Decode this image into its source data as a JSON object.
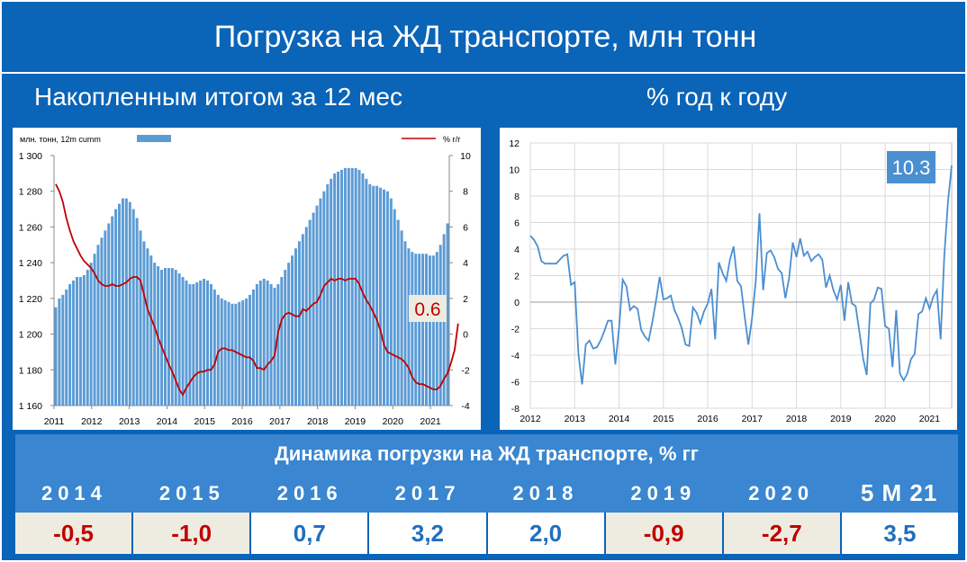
{
  "title": "Погрузка на ЖД транспорте, млн тонн",
  "left_subtitle": "Накопленным итогом за 12 мес",
  "right_subtitle": "% год к году",
  "chart_data": [
    {
      "type": "bar",
      "legend_bar": "млн. тонн, 12m cumm",
      "legend_line": "% г/г",
      "legend_position": "top",
      "x_ticks": [
        "2011",
        "2012",
        "2013",
        "2014",
        "2015",
        "2016",
        "2017",
        "2018",
        "2019",
        "2020",
        "2021"
      ],
      "y_left_ticks": [
        "1 300",
        "1 280",
        "1 260",
        "1 240",
        "1 220",
        "1 200",
        "1 180",
        "1 160"
      ],
      "y_right_ticks": [
        "10",
        "8",
        "6",
        "4",
        "2",
        "0",
        "-2",
        "-4"
      ],
      "ylim_left": [
        1160,
        1300
      ],
      "ylim_right": [
        -4,
        10
      ],
      "x_start": 2011.0,
      "x_step_months": 1,
      "series": [
        {
          "name": "млн. тонн, 12m cumm",
          "axis": "left",
          "values": [
            1215,
            1220,
            1222,
            1225,
            1228,
            1230,
            1232,
            1232,
            1233,
            1236,
            1240,
            1245,
            1250,
            1254,
            1258,
            1262,
            1266,
            1270,
            1273,
            1276,
            1276,
            1274,
            1270,
            1265,
            1258,
            1252,
            1248,
            1244,
            1240,
            1238,
            1236,
            1237,
            1237,
            1237,
            1236,
            1234,
            1232,
            1230,
            1228,
            1228,
            1229,
            1230,
            1231,
            1230,
            1228,
            1225,
            1222,
            1220,
            1219,
            1218,
            1217,
            1217,
            1218,
            1219,
            1220,
            1222,
            1225,
            1228,
            1230,
            1231,
            1230,
            1228,
            1226,
            1228,
            1232,
            1236,
            1240,
            1244,
            1248,
            1252,
            1256,
            1260,
            1264,
            1268,
            1272,
            1276,
            1280,
            1284,
            1287,
            1290,
            1291,
            1292,
            1293,
            1293,
            1293,
            1293,
            1292,
            1290,
            1287,
            1284,
            1283,
            1283,
            1282,
            1281,
            1280,
            1276,
            1270,
            1264,
            1258,
            1252,
            1248,
            1246,
            1245,
            1245,
            1245,
            1245,
            1244,
            1244,
            1246,
            1250,
            1256,
            1262
          ]
        },
        {
          "name": "% г/г",
          "axis": "right",
          "values": [
            8.4,
            8.0,
            7.4,
            6.5,
            5.8,
            5.2,
            4.8,
            4.4,
            4.1,
            3.9,
            3.7,
            3.4,
            3.0,
            2.8,
            2.7,
            2.7,
            2.8,
            2.7,
            2.7,
            2.8,
            2.9,
            3.1,
            3.2,
            3.2,
            3.0,
            2.2,
            1.4,
            0.9,
            0.4,
            -0.2,
            -0.7,
            -1.2,
            -1.7,
            -2.1,
            -2.6,
            -3.1,
            -3.4,
            -3.0,
            -2.7,
            -2.4,
            -2.2,
            -2.1,
            -2.1,
            -2.0,
            -2.0,
            -1.7,
            -1.0,
            -0.8,
            -0.8,
            -0.9,
            -0.9,
            -1.0,
            -1.1,
            -1.2,
            -1.3,
            -1.3,
            -1.5,
            -1.9,
            -1.9,
            -2.0,
            -1.7,
            -1.5,
            -1.2,
            0.1,
            0.8,
            1.1,
            1.2,
            1.1,
            1.0,
            1.0,
            1.4,
            1.3,
            1.5,
            1.7,
            1.8,
            2.2,
            2.7,
            2.9,
            3.1,
            3.0,
            3.1,
            3.1,
            3.0,
            3.1,
            3.1,
            3.1,
            2.8,
            2.3,
            1.9,
            1.6,
            1.2,
            0.8,
            0.2,
            -0.6,
            -1.0,
            -1.1,
            -1.2,
            -1.3,
            -1.4,
            -1.6,
            -1.9,
            -2.4,
            -2.7,
            -2.8,
            -2.8,
            -2.9,
            -3.0,
            -3.1,
            -3.1,
            -2.9,
            -2.5,
            -2.2,
            -1.6,
            -0.9,
            0.6
          ],
          "color": "#c00000"
        }
      ],
      "annotation": "0.6"
    },
    {
      "type": "line",
      "x_ticks": [
        "2012",
        "2013",
        "2014",
        "2015",
        "2016",
        "2017",
        "2018",
        "2019",
        "2020",
        "2021"
      ],
      "y_ticks": [
        "12",
        "10",
        "8",
        "6",
        "4",
        "2",
        "0",
        "-2",
        "-4",
        "-6",
        "-8"
      ],
      "ylim": [
        -8,
        12
      ],
      "x_start": 2012.0,
      "x_step_months": 1,
      "values": [
        5.0,
        4.7,
        4.2,
        3.1,
        2.9,
        2.9,
        2.9,
        2.9,
        3.2,
        3.5,
        3.6,
        1.3,
        1.5,
        -3.9,
        -6.2,
        -3.2,
        -2.9,
        -3.5,
        -3.4,
        -2.9,
        -2.2,
        -1.4,
        -1.4,
        -4.7,
        -2.0,
        1.7,
        1.2,
        -0.6,
        -0.3,
        -0.5,
        -2.1,
        -2.6,
        -2.9,
        -1.5,
        0.1,
        1.9,
        0.2,
        0.3,
        0.5,
        -0.6,
        -1.2,
        -2.0,
        -3.2,
        -3.3,
        -0.4,
        -0.8,
        -1.6,
        -0.7,
        -0.1,
        1.0,
        -2.8,
        3.0,
        2.2,
        1.6,
        3.2,
        4.2,
        1.6,
        1.2,
        -1.1,
        -3.2,
        -1.2,
        1.6,
        6.7,
        0.9,
        3.7,
        3.9,
        3.4,
        2.5,
        2.2,
        0.3,
        1.8,
        4.5,
        3.4,
        4.8,
        3.5,
        3.8,
        3.1,
        3.4,
        3.6,
        3.2,
        1.1,
        2.0,
        0.9,
        0.2,
        1.3,
        -1.4,
        1.5,
        -0.1,
        -0.3,
        -2.2,
        -4.2,
        -5.5,
        -0.1,
        0.2,
        1.1,
        1.0,
        -1.8,
        -2.0,
        -4.9,
        -0.6,
        -5.4,
        -5.9,
        -5.4,
        -4.3,
        -3.9,
        -0.9,
        -0.7,
        0.3,
        -0.5,
        0.4,
        0.9,
        -2.8,
        3.5,
        7.6,
        10.3
      ],
      "color": "#4a8fd0",
      "annotation": "10.3"
    }
  ],
  "table": {
    "title": "Динамика погрузки на ЖД транспорте, % гг",
    "years": [
      "2014",
      "2015",
      "2016",
      "2017",
      "2018",
      "2019",
      "2020",
      "5 М 21"
    ],
    "values": [
      "-0,5",
      "-1,0",
      "0,7",
      "3,2",
      "2,0",
      "-0,9",
      "-2,7",
      "3,5"
    ],
    "value_sign": [
      "neg",
      "neg",
      "pos",
      "pos",
      "pos",
      "neg",
      "neg",
      "pos"
    ]
  }
}
